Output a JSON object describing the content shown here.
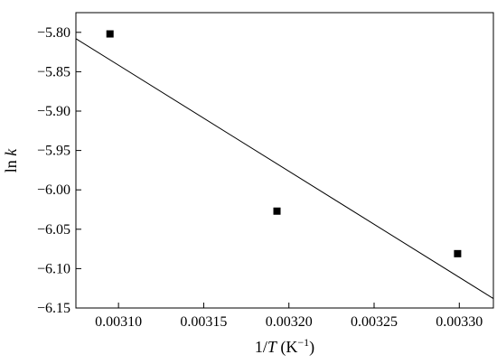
{
  "chart_data": {
    "type": "scatter",
    "title": "",
    "xlabel": {
      "prefix": "1/",
      "var": "T",
      "units_open": " (K",
      "units_exp": "−1",
      "units_close": ")"
    },
    "ylabel": {
      "fn": "ln ",
      "var": "k"
    },
    "xlim": [
      0.003075,
      0.00332
    ],
    "ylim": [
      -6.15,
      -5.775
    ],
    "xticks": [
      {
        "value": 0.0031,
        "label": "0.00310"
      },
      {
        "value": 0.00315,
        "label": "0.00315"
      },
      {
        "value": 0.0032,
        "label": "0.00320"
      },
      {
        "value": 0.00325,
        "label": "0.00325"
      },
      {
        "value": 0.0033,
        "label": "0.00330"
      }
    ],
    "yticks": [
      {
        "value": -5.8,
        "label": "−5.80"
      },
      {
        "value": -5.85,
        "label": "−5.85"
      },
      {
        "value": -5.9,
        "label": "−5.90"
      },
      {
        "value": -5.95,
        "label": "−5.95"
      },
      {
        "value": -6.0,
        "label": "−6.00"
      },
      {
        "value": -6.05,
        "label": "−6.05"
      },
      {
        "value": -6.1,
        "label": "−6.10"
      },
      {
        "value": -6.15,
        "label": "−6.15"
      }
    ],
    "points": [
      {
        "x": 0.003095,
        "y": -5.802
      },
      {
        "x": 0.003193,
        "y": -6.027
      },
      {
        "x": 0.003299,
        "y": -6.081
      }
    ],
    "fit_line": {
      "x": [
        0.003075,
        0.00332
      ],
      "y": [
        -5.808,
        -6.138
      ]
    },
    "grid": false,
    "legend": "none",
    "colors": {
      "axis": "#000000",
      "marker": "#000000",
      "line": "#000000"
    }
  }
}
